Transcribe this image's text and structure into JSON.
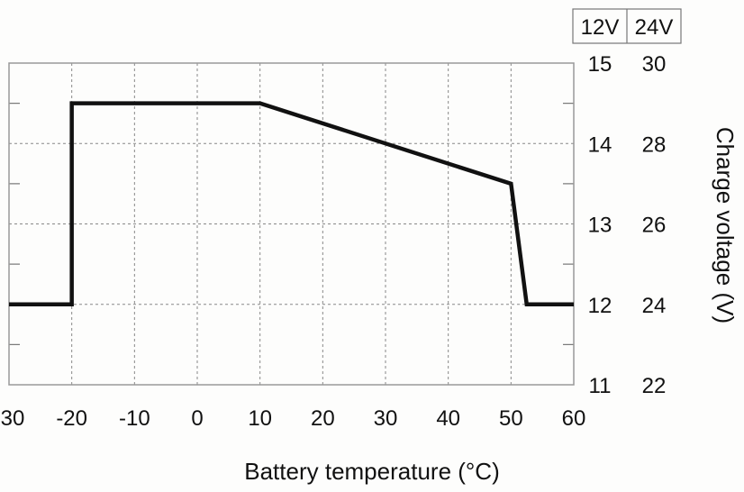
{
  "chart_data": {
    "type": "line",
    "title": "",
    "xlabel": "Battery temperature (°C)",
    "ylabel": "Charge voltage (V)",
    "xlim": [
      -30,
      60
    ],
    "ylim": [
      11,
      15
    ],
    "grid": true,
    "x_ticks": [
      -30,
      -20,
      -10,
      0,
      10,
      20,
      30,
      40,
      50,
      60
    ],
    "x_tick_labels": [
      "-30",
      "-20",
      "-10",
      "0",
      "10",
      "20",
      "30",
      "40",
      "50",
      "60"
    ],
    "y_axis_header": [
      "12V",
      "24V"
    ],
    "y_ticks": [
      15,
      14,
      13,
      12,
      11
    ],
    "y_tick_labels_12v": [
      "15",
      "14",
      "13",
      "12",
      "11"
    ],
    "y_tick_labels_24v": [
      "30",
      "28",
      "26",
      "24",
      "22"
    ],
    "series": [
      {
        "name": "Charge voltage (12V)",
        "color": "#111111",
        "x": [
          -30,
          -20,
          -20,
          10,
          50,
          52.5,
          60
        ],
        "y": [
          12,
          12,
          14.5,
          14.5,
          13.5,
          12,
          12
        ]
      }
    ]
  }
}
